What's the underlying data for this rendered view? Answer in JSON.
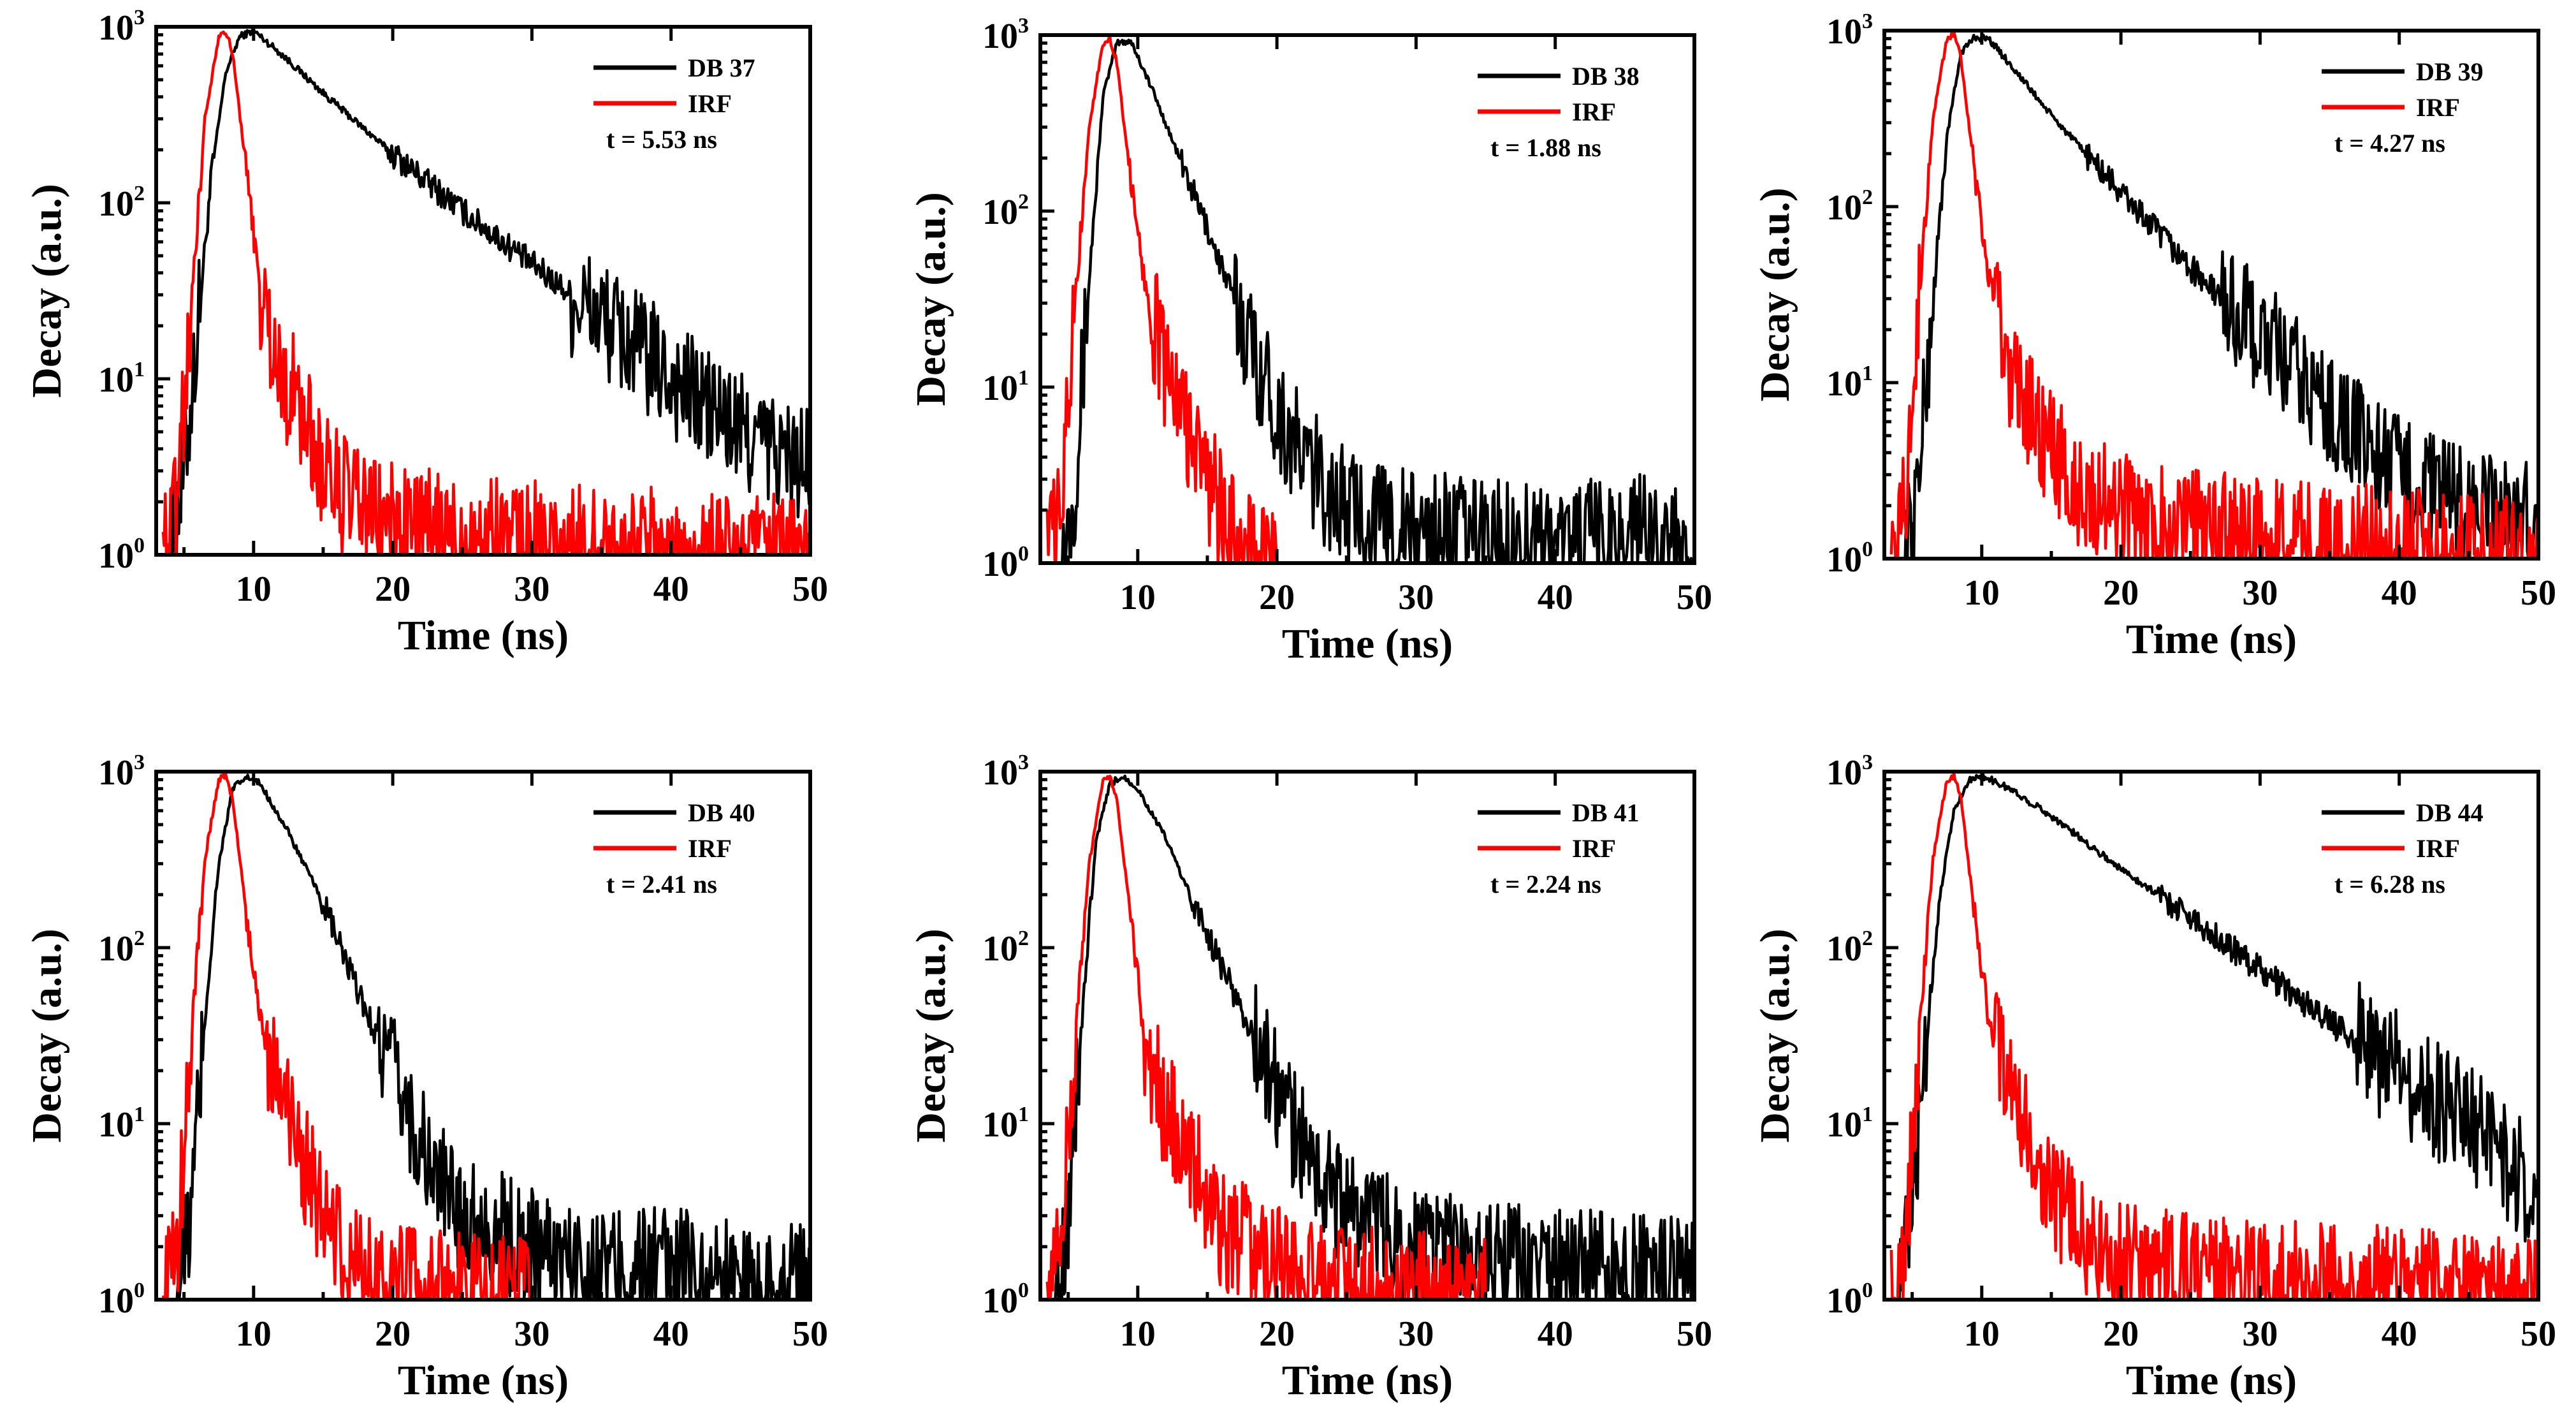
{
  "chart_data": [
    {
      "type": "line",
      "xlabel": "Time (ns)",
      "ylabel": "Decay (a.u.)",
      "xlim": [
        3,
        50
      ],
      "ylim": [
        1,
        1000
      ],
      "yscale": "log",
      "xticks": [
        10,
        20,
        30,
        40,
        50
      ],
      "yticks": [
        {
          "base": "10",
          "exp": "0"
        },
        {
          "base": "10",
          "exp": "1"
        },
        {
          "base": "10",
          "exp": "2"
        },
        {
          "base": "10",
          "exp": "3"
        }
      ],
      "legend_position": "top-right",
      "annotation": "t = 5.53 ns",
      "series": [
        {
          "name": "DB 37",
          "color": "#000000",
          "points": [
            [
              4,
              1
            ],
            [
              5,
              3
            ],
            [
              6,
              20
            ],
            [
              7,
              150
            ],
            [
              8,
              550
            ],
            [
              9,
              880
            ],
            [
              10,
              950
            ],
            [
              12,
              700
            ],
            [
              15,
              420
            ],
            [
              20,
              190
            ],
            [
              25,
              90
            ],
            [
              30,
              45
            ],
            [
              35,
              22
            ],
            [
              40,
              10
            ],
            [
              45,
              5
            ],
            [
              50,
              3
            ]
          ]
        },
        {
          "name": "IRF",
          "color": "#ff0000",
          "points": [
            [
              3.5,
              1
            ],
            [
              4.5,
              2
            ],
            [
              5.5,
              25
            ],
            [
              6.5,
              300
            ],
            [
              7.5,
              900
            ],
            [
              8,
              950
            ],
            [
              8.5,
              700
            ],
            [
              9.5,
              150
            ],
            [
              10.5,
              30
            ],
            [
              12,
              10
            ],
            [
              13,
              8
            ],
            [
              14,
              5
            ],
            [
              15,
              3
            ],
            [
              17,
              2
            ],
            [
              20,
              1.5
            ],
            [
              25,
              1.3
            ],
            [
              30,
              1.2
            ],
            [
              35,
              1.1
            ],
            [
              40,
              1.1
            ],
            [
              45,
              1.0
            ],
            [
              50,
              1.0
            ]
          ]
        }
      ]
    },
    {
      "type": "line",
      "xlabel": "Time (ns)",
      "ylabel": "Decay (a.u.)",
      "xlim": [
        3,
        50
      ],
      "ylim": [
        1,
        1000
      ],
      "yscale": "log",
      "xticks": [
        10,
        20,
        30,
        40,
        50
      ],
      "yticks": [
        {
          "base": "10",
          "exp": "0"
        },
        {
          "base": "10",
          "exp": "1"
        },
        {
          "base": "10",
          "exp": "2"
        },
        {
          "base": "10",
          "exp": "3"
        }
      ],
      "legend_position": "top-right",
      "annotation": "t = 1.88 ns",
      "series": [
        {
          "name": "DB 38",
          "color": "#000000",
          "points": [
            [
              4.5,
              1
            ],
            [
              5.5,
              3
            ],
            [
              6.5,
              40
            ],
            [
              7.5,
              450
            ],
            [
              8.5,
              900
            ],
            [
              9.5,
              930
            ],
            [
              11,
              500
            ],
            [
              13,
              200
            ],
            [
              15,
              80
            ],
            [
              17,
              30
            ],
            [
              19,
              12
            ],
            [
              21,
              5
            ],
            [
              23,
              3
            ],
            [
              25,
              2
            ],
            [
              30,
              1.5
            ],
            [
              40,
              1.3
            ],
            [
              48,
              1.5
            ],
            [
              50,
              1
            ]
          ]
        },
        {
          "name": "IRF",
          "color": "#ff0000",
          "points": [
            [
              3.5,
              1
            ],
            [
              4.5,
              2
            ],
            [
              5.5,
              30
            ],
            [
              6.5,
              300
            ],
            [
              7.5,
              900
            ],
            [
              8,
              950
            ],
            [
              8.5,
              700
            ],
            [
              9.5,
              150
            ],
            [
              10.5,
              40
            ],
            [
              12,
              12
            ],
            [
              13,
              8
            ],
            [
              14,
              5
            ],
            [
              15,
              3
            ],
            [
              16,
              2
            ],
            [
              17,
              1.3
            ],
            [
              18,
              1.1
            ],
            [
              20,
              1
            ]
          ]
        }
      ]
    },
    {
      "type": "line",
      "xlabel": "Time (ns)",
      "ylabel": "Decay (a.u.)",
      "xlim": [
        3,
        50
      ],
      "ylim": [
        1,
        1000
      ],
      "yscale": "log",
      "xticks": [
        10,
        20,
        30,
        40,
        50
      ],
      "yticks": [
        {
          "base": "10",
          "exp": "0"
        },
        {
          "base": "10",
          "exp": "1"
        },
        {
          "base": "10",
          "exp": "2"
        },
        {
          "base": "10",
          "exp": "3"
        }
      ],
      "legend_position": "top-right",
      "annotation": "t = 4.27 ns",
      "series": [
        {
          "name": "DB 39",
          "color": "#000000",
          "points": [
            [
              4.5,
              1
            ],
            [
              5.5,
              3
            ],
            [
              6.5,
              30
            ],
            [
              7.5,
              250
            ],
            [
              8.5,
              750
            ],
            [
              9.5,
              920
            ],
            [
              10.5,
              900
            ],
            [
              12,
              650
            ],
            [
              15,
              330
            ],
            [
              20,
              120
            ],
            [
              25,
              45
            ],
            [
              30,
              18
            ],
            [
              35,
              7
            ],
            [
              40,
              3
            ],
            [
              45,
              2
            ],
            [
              50,
              1.5
            ]
          ]
        },
        {
          "name": "IRF",
          "color": "#ff0000",
          "points": [
            [
              3.5,
              1
            ],
            [
              4.5,
              2
            ],
            [
              5.5,
              30
            ],
            [
              6.5,
              320
            ],
            [
              7.5,
              900
            ],
            [
              8,
              950
            ],
            [
              8.5,
              700
            ],
            [
              9.5,
              150
            ],
            [
              10.5,
              40
            ],
            [
              12,
              12
            ],
            [
              13,
              8
            ],
            [
              14,
              6
            ],
            [
              15,
              4
            ],
            [
              17,
              2.5
            ],
            [
              20,
              1.8
            ],
            [
              25,
              1.5
            ],
            [
              30,
              1.3
            ],
            [
              35,
              1.2
            ],
            [
              40,
              1.2
            ],
            [
              45,
              1.1
            ],
            [
              50,
              1.0
            ]
          ]
        }
      ]
    },
    {
      "type": "line",
      "xlabel": "Time (ns)",
      "ylabel": "Decay (a.u.)",
      "xlim": [
        3,
        50
      ],
      "ylim": [
        1,
        1000
      ],
      "yscale": "log",
      "xticks": [
        10,
        20,
        30,
        40,
        50
      ],
      "yticks": [
        {
          "base": "10",
          "exp": "0"
        },
        {
          "base": "10",
          "exp": "1"
        },
        {
          "base": "10",
          "exp": "2"
        },
        {
          "base": "10",
          "exp": "3"
        }
      ],
      "legend_position": "top-right",
      "annotation": "t = 2.41 ns",
      "series": [
        {
          "name": "DB 40",
          "color": "#000000",
          "points": [
            [
              4.5,
              1
            ],
            [
              5.5,
              3
            ],
            [
              6.5,
              40
            ],
            [
              7.5,
              300
            ],
            [
              8.5,
              800
            ],
            [
              9.5,
              930
            ],
            [
              10.5,
              850
            ],
            [
              12.5,
              450
            ],
            [
              15,
              180
            ],
            [
              17,
              70
            ],
            [
              19,
              30
            ],
            [
              21,
              12
            ],
            [
              23,
              5
            ],
            [
              25,
              3
            ],
            [
              30,
              2
            ],
            [
              35,
              1.5
            ],
            [
              40,
              1.5
            ],
            [
              45,
              1.3
            ],
            [
              50,
              1.2
            ]
          ]
        },
        {
          "name": "IRF",
          "color": "#ff0000",
          "points": [
            [
              3.5,
              1
            ],
            [
              4.5,
              2
            ],
            [
              5.5,
              30
            ],
            [
              6.5,
              320
            ],
            [
              7.5,
              900
            ],
            [
              8,
              950
            ],
            [
              8.5,
              700
            ],
            [
              9.5,
              150
            ],
            [
              10.5,
              40
            ],
            [
              12,
              12
            ],
            [
              13,
              9
            ],
            [
              14,
              5
            ],
            [
              15,
              3
            ],
            [
              16,
              2
            ],
            [
              18,
              1.5
            ],
            [
              20,
              1.2
            ],
            [
              25,
              1.1
            ],
            [
              30,
              1.0
            ]
          ]
        }
      ]
    },
    {
      "type": "line",
      "xlabel": "Time (ns)",
      "ylabel": "Decay (a.u.)",
      "xlim": [
        3,
        50
      ],
      "ylim": [
        1,
        1000
      ],
      "yscale": "log",
      "xticks": [
        10,
        20,
        30,
        40,
        50
      ],
      "yticks": [
        {
          "base": "10",
          "exp": "0"
        },
        {
          "base": "10",
          "exp": "1"
        },
        {
          "base": "10",
          "exp": "2"
        },
        {
          "base": "10",
          "exp": "3"
        }
      ],
      "legend_position": "top-right",
      "annotation": "t = 2.24 ns",
      "series": [
        {
          "name": "DB 41",
          "color": "#000000",
          "points": [
            [
              4,
              1
            ],
            [
              5,
              3
            ],
            [
              6,
              40
            ],
            [
              7,
              400
            ],
            [
              8,
              850
            ],
            [
              9,
              940
            ],
            [
              10,
              800
            ],
            [
              12,
              420
            ],
            [
              14,
              180
            ],
            [
              16,
              80
            ],
            [
              18,
              35
            ],
            [
              20,
              15
            ],
            [
              22,
              7
            ],
            [
              24,
              4
            ],
            [
              26,
              3
            ],
            [
              30,
              2
            ],
            [
              35,
              1.6
            ],
            [
              40,
              1.5
            ],
            [
              45,
              1.4
            ],
            [
              50,
              1.3
            ]
          ]
        },
        {
          "name": "IRF",
          "color": "#ff0000",
          "points": [
            [
              3.5,
              1
            ],
            [
              4.5,
              2
            ],
            [
              5.5,
              30
            ],
            [
              6.5,
              300
            ],
            [
              7.5,
              900
            ],
            [
              8,
              950
            ],
            [
              8.5,
              700
            ],
            [
              9.5,
              150
            ],
            [
              10.5,
              30
            ],
            [
              12,
              12
            ],
            [
              13,
              9
            ],
            [
              14,
              6
            ],
            [
              15,
              4
            ],
            [
              16,
              2.5
            ],
            [
              18,
              2
            ],
            [
              20,
              1.5
            ],
            [
              25,
              1.3
            ],
            [
              30,
              1.1
            ],
            [
              35,
              1.0
            ]
          ]
        }
      ]
    },
    {
      "type": "line",
      "xlabel": "Time (ns)",
      "ylabel": "Decay (a.u.)",
      "xlim": [
        3,
        50
      ],
      "ylim": [
        1,
        1000
      ],
      "yscale": "log",
      "xticks": [
        10,
        20,
        30,
        40,
        50
      ],
      "yticks": [
        {
          "base": "10",
          "exp": "0"
        },
        {
          "base": "10",
          "exp": "1"
        },
        {
          "base": "10",
          "exp": "2"
        },
        {
          "base": "10",
          "exp": "3"
        }
      ],
      "legend_position": "top-right",
      "annotation": "t = 6.28 ns",
      "series": [
        {
          "name": "DB 44",
          "color": "#000000",
          "points": [
            [
              4,
              1
            ],
            [
              5,
              3
            ],
            [
              6,
              30
            ],
            [
              7,
              200
            ],
            [
              8,
              600
            ],
            [
              9,
              880
            ],
            [
              10,
              950
            ],
            [
              12,
              800
            ],
            [
              15,
              560
            ],
            [
              20,
              280
            ],
            [
              25,
              150
            ],
            [
              30,
              75
            ],
            [
              35,
              38
            ],
            [
              40,
              20
            ],
            [
              45,
              10
            ],
            [
              50,
              4
            ]
          ]
        },
        {
          "name": "IRF",
          "color": "#ff0000",
          "points": [
            [
              3.5,
              1
            ],
            [
              4.5,
              2
            ],
            [
              5.5,
              30
            ],
            [
              6.5,
              320
            ],
            [
              7.5,
              900
            ],
            [
              8,
              950
            ],
            [
              8.5,
              700
            ],
            [
              9.5,
              150
            ],
            [
              10.5,
              40
            ],
            [
              12,
              15
            ],
            [
              13,
              10
            ],
            [
              14,
              6
            ],
            [
              15,
              4
            ],
            [
              16,
              3
            ],
            [
              18,
              2
            ],
            [
              20,
              1.6
            ],
            [
              25,
              1.4
            ],
            [
              30,
              1.3
            ],
            [
              35,
              1.2
            ],
            [
              40,
              1.2
            ],
            [
              45,
              1.1
            ],
            [
              50,
              1.0
            ]
          ]
        }
      ]
    }
  ]
}
